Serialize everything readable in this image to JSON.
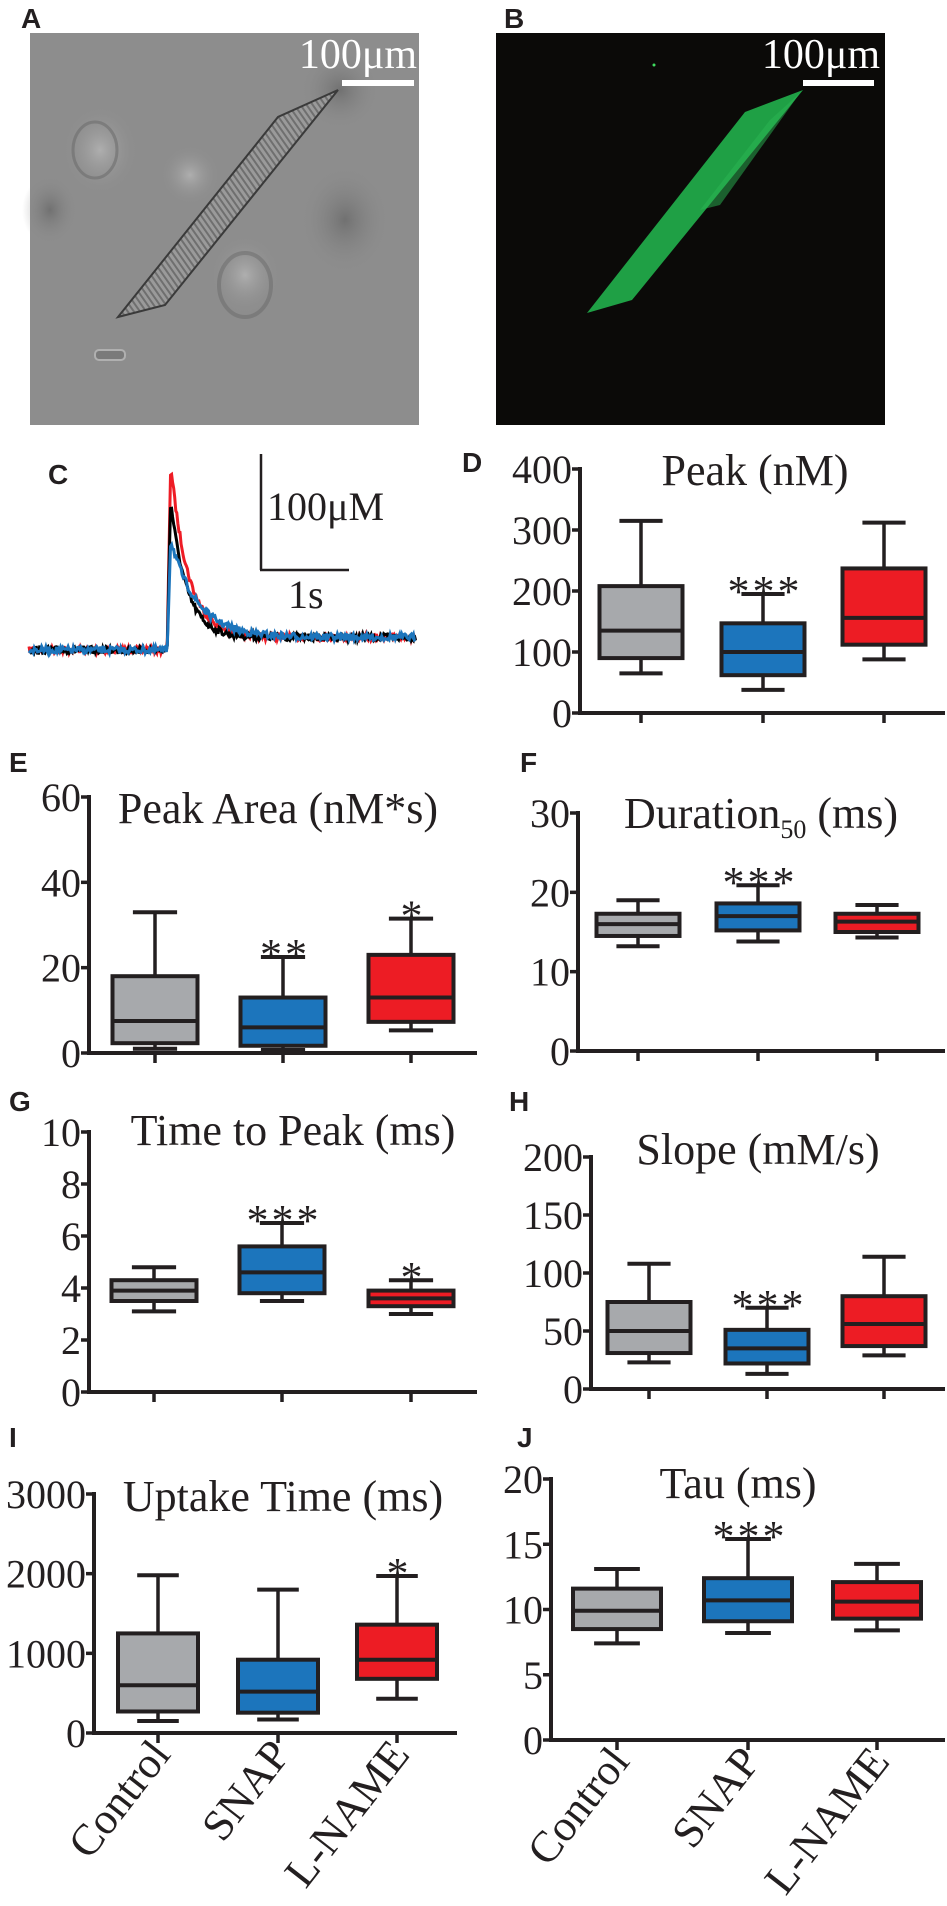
{
  "panels": {
    "A": {
      "label": "A",
      "scale_bar": "100μm"
    },
    "B": {
      "label": "B",
      "scale_bar": "100μm"
    }
  },
  "colors": {
    "Control": "#a7a9ac",
    "SNAP": "#1c75bc",
    "L-NAME": "#ed1c24",
    "trace_control": "#000000",
    "trace_snap": "#1c75bc",
    "trace_lname": "#ee1c25",
    "fluorescence": "#1fa045"
  },
  "x_labels": [
    "Control",
    "SNAP",
    "L-NAME"
  ],
  "chart_data": [
    {
      "panel_label": "C",
      "type": "line",
      "scale_bar_y": "100μM",
      "scale_bar_y_value": 100,
      "scale_bar_x": "1s",
      "scale_bar_x_value": 1,
      "onset_s": 1.57,
      "duration_s": 4.4,
      "plateau": 11,
      "series": [
        {
          "name": "L-NAME",
          "color": "#ee1c25",
          "peak": 160,
          "tau_s": 0.2
        },
        {
          "name": "Control",
          "color": "#000000",
          "peak": 129,
          "tau_s": 0.18
        },
        {
          "name": "SNAP",
          "color": "#1c75bc",
          "peak": 95,
          "tau_s": 0.3
        }
      ]
    },
    {
      "panel_label": "D",
      "type": "box",
      "title": "Peak (nM)",
      "title_sub": "",
      "title_suffix": "",
      "ylim": [
        0,
        400
      ],
      "yticks": [
        0,
        100,
        200,
        300,
        400
      ],
      "categories": [
        "Control",
        "SNAP",
        "L-NAME"
      ],
      "boxes": [
        {
          "min": 65,
          "q1": 90,
          "median": 135,
          "q3": 208,
          "max": 315
        },
        {
          "min": 38,
          "q1": 62,
          "median": 100,
          "q3": 147,
          "max": 195
        },
        {
          "min": 88,
          "q1": 112,
          "median": 156,
          "q3": 237,
          "max": 312
        }
      ],
      "significance": [
        "",
        "***",
        ""
      ]
    },
    {
      "panel_label": "E",
      "type": "box",
      "title": "Peak Area (nM*s)",
      "title_sub": "",
      "title_suffix": "",
      "ylim": [
        0,
        60
      ],
      "yticks": [
        0,
        20,
        40,
        60
      ],
      "categories": [
        "Control",
        "SNAP",
        "L-NAME"
      ],
      "boxes": [
        {
          "min": 1,
          "q1": 2.3,
          "median": 7.5,
          "q3": 18,
          "max": 33
        },
        {
          "min": 0.7,
          "q1": 1.7,
          "median": 6,
          "q3": 13,
          "max": 22.5
        },
        {
          "min": 5.3,
          "q1": 7.3,
          "median": 13,
          "q3": 23,
          "max": 31.5
        }
      ],
      "significance": [
        "",
        "**",
        "*"
      ]
    },
    {
      "panel_label": "F",
      "type": "box",
      "title": "Duration",
      "title_sub": "50",
      "title_suffix": " (ms)",
      "ylim": [
        0,
        30
      ],
      "yticks": [
        0,
        10,
        20,
        30
      ],
      "categories": [
        "Control",
        "SNAP",
        "L-NAME"
      ],
      "boxes": [
        {
          "min": 13.2,
          "q1": 14.5,
          "median": 16,
          "q3": 17.3,
          "max": 19
        },
        {
          "min": 13.8,
          "q1": 15.2,
          "median": 17,
          "q3": 18.6,
          "max": 20.9
        },
        {
          "min": 14.3,
          "q1": 15,
          "median": 16.3,
          "q3": 17.3,
          "max": 18.4
        }
      ],
      "significance": [
        "",
        "***",
        ""
      ]
    },
    {
      "panel_label": "G",
      "type": "box",
      "title": "Time to Peak (ms)",
      "title_sub": "",
      "title_suffix": "",
      "ylim": [
        0,
        10
      ],
      "yticks": [
        0,
        2,
        4,
        6,
        8,
        10
      ],
      "categories": [
        "Control",
        "SNAP",
        "L-NAME"
      ],
      "boxes": [
        {
          "min": 3.1,
          "q1": 3.5,
          "median": 3.9,
          "q3": 4.3,
          "max": 4.8
        },
        {
          "min": 3.5,
          "q1": 3.8,
          "median": 4.6,
          "q3": 5.6,
          "max": 6.5
        },
        {
          "min": 3.0,
          "q1": 3.3,
          "median": 3.6,
          "q3": 3.9,
          "max": 4.3
        }
      ],
      "significance": [
        "",
        "***",
        "*"
      ]
    },
    {
      "panel_label": "H",
      "type": "box",
      "title": "Slope (mM/s)",
      "title_sub": "",
      "title_suffix": "",
      "ylim": [
        0,
        200
      ],
      "yticks": [
        0,
        50,
        100,
        150,
        200
      ],
      "categories": [
        "Control",
        "SNAP",
        "L-NAME"
      ],
      "boxes": [
        {
          "min": 23,
          "q1": 31,
          "median": 50,
          "q3": 75,
          "max": 108
        },
        {
          "min": 13,
          "q1": 22,
          "median": 35,
          "q3": 51,
          "max": 70
        },
        {
          "min": 29,
          "q1": 37,
          "median": 56,
          "q3": 80,
          "max": 114
        }
      ],
      "significance": [
        "",
        "***",
        ""
      ]
    },
    {
      "panel_label": "I",
      "type": "box",
      "title": "Uptake Time (ms)",
      "title_sub": "",
      "title_suffix": "",
      "ylim": [
        0,
        3000
      ],
      "yticks": [
        0,
        1000,
        2000,
        3000
      ],
      "categories": [
        "Control",
        "SNAP",
        "L-NAME"
      ],
      "boxes": [
        {
          "min": 150,
          "q1": 270,
          "median": 600,
          "q3": 1250,
          "max": 1980
        },
        {
          "min": 170,
          "q1": 255,
          "median": 520,
          "q3": 920,
          "max": 1800
        },
        {
          "min": 430,
          "q1": 680,
          "median": 920,
          "q3": 1360,
          "max": 1970
        }
      ],
      "significance": [
        "",
        "",
        "*"
      ]
    },
    {
      "panel_label": "J",
      "type": "box",
      "title": "Tau (ms)",
      "title_sub": "",
      "title_suffix": "",
      "ylim": [
        0,
        20
      ],
      "yticks": [
        0,
        5,
        10,
        15,
        20
      ],
      "categories": [
        "Control",
        "SNAP",
        "L-NAME"
      ],
      "boxes": [
        {
          "min": 7.4,
          "q1": 8.5,
          "median": 9.9,
          "q3": 11.6,
          "max": 13.1
        },
        {
          "min": 8.2,
          "q1": 9.1,
          "median": 10.7,
          "q3": 12.4,
          "max": 15.4
        },
        {
          "min": 8.4,
          "q1": 9.3,
          "median": 10.6,
          "q3": 12.1,
          "max": 13.5
        }
      ],
      "significance": [
        "",
        "***",
        ""
      ]
    }
  ]
}
